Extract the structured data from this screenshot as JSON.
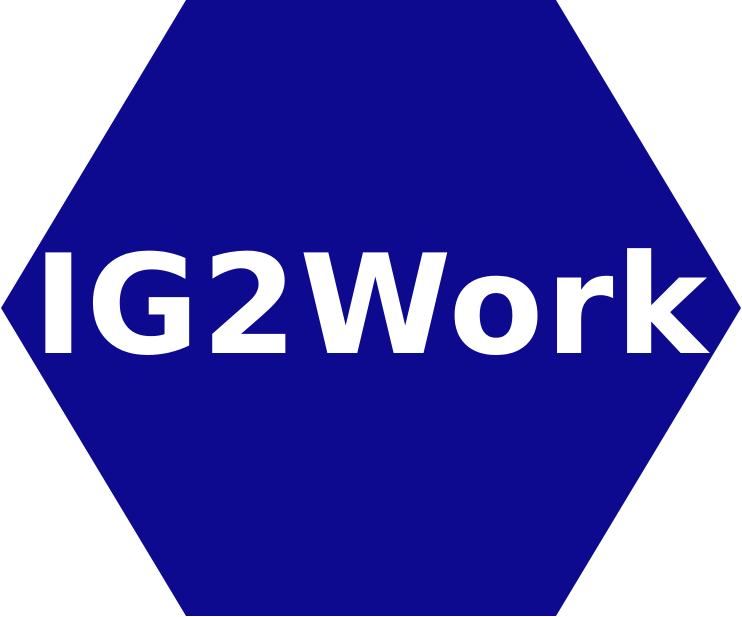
{
  "logo": {
    "text": "IG2Work",
    "shape": "hexagon",
    "fill_color": "#0e0a8f",
    "text_color": "#ffffff",
    "background_color": "#ffffff"
  }
}
